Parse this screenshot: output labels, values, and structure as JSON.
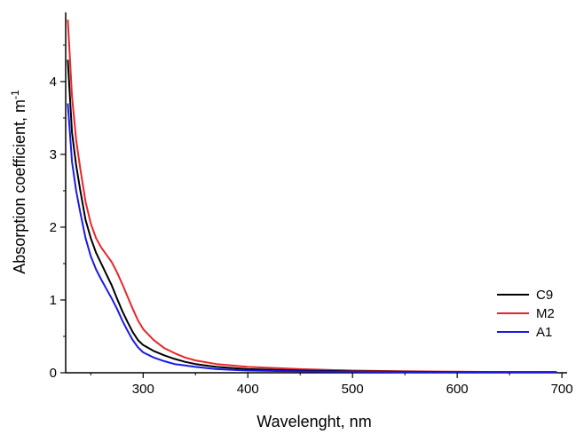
{
  "chart_data": {
    "type": "line",
    "title": "",
    "xlabel": "Wavelenght, nm",
    "ylabel": "Absorption coefficient, m",
    "ylabel_superscript": "-1",
    "xlim": [
      226,
      705
    ],
    "ylim": [
      0,
      4.95
    ],
    "xticks": [
      300,
      400,
      500,
      600,
      700
    ],
    "xtick_labels": [
      "300",
      "400",
      "500",
      "600",
      "700"
    ],
    "yticks": [
      0,
      1,
      2,
      3,
      4
    ],
    "ytick_labels": [
      "0",
      "1",
      "2",
      "3",
      "4"
    ],
    "grid": false,
    "legend_position": "right",
    "series": [
      {
        "name": "C9",
        "color": "#000000",
        "x": [
          228,
          232,
          236,
          240,
          245,
          250,
          255,
          260,
          265,
          270,
          275,
          280,
          285,
          290,
          295,
          300,
          310,
          320,
          330,
          340,
          350,
          370,
          400,
          450,
          500,
          550,
          600,
          650,
          695
        ],
        "y": [
          4.3,
          3.3,
          2.85,
          2.5,
          2.1,
          1.85,
          1.65,
          1.5,
          1.35,
          1.2,
          1.02,
          0.85,
          0.7,
          0.56,
          0.45,
          0.38,
          0.3,
          0.24,
          0.19,
          0.15,
          0.12,
          0.08,
          0.05,
          0.03,
          0.02,
          0.015,
          0.01,
          0.01,
          0.01
        ]
      },
      {
        "name": "M2",
        "color": "#e8262a",
        "x": [
          228,
          232,
          236,
          240,
          245,
          250,
          255,
          260,
          265,
          270,
          275,
          280,
          285,
          290,
          295,
          300,
          310,
          320,
          330,
          340,
          350,
          370,
          400,
          450,
          500,
          550,
          600,
          650,
          695
        ],
        "y": [
          4.85,
          3.8,
          3.2,
          2.8,
          2.35,
          2.05,
          1.85,
          1.72,
          1.62,
          1.52,
          1.38,
          1.22,
          1.05,
          0.88,
          0.72,
          0.6,
          0.45,
          0.34,
          0.27,
          0.21,
          0.17,
          0.12,
          0.08,
          0.05,
          0.03,
          0.02,
          0.015,
          0.01,
          0.01
        ]
      },
      {
        "name": "A1",
        "color": "#1a1ae6",
        "x": [
          228,
          232,
          236,
          240,
          245,
          250,
          255,
          260,
          265,
          270,
          275,
          280,
          285,
          290,
          295,
          300,
          310,
          320,
          330,
          340,
          350,
          370,
          400,
          450,
          500,
          550,
          600,
          650,
          695
        ],
        "y": [
          3.7,
          2.9,
          2.5,
          2.2,
          1.85,
          1.6,
          1.42,
          1.28,
          1.15,
          1.02,
          0.88,
          0.72,
          0.58,
          0.45,
          0.35,
          0.28,
          0.21,
          0.16,
          0.12,
          0.1,
          0.08,
          0.05,
          0.03,
          0.02,
          0.015,
          0.01,
          0.01,
          0.01,
          0.01
        ]
      }
    ]
  }
}
